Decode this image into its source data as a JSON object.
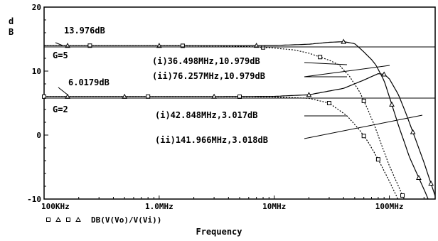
{
  "chart_data": {
    "type": "line",
    "title": "",
    "xlabel": "Frequency",
    "ylabel": "dB",
    "x_scale": "log",
    "xlim": [
      100000,
      250000000
    ],
    "ylim": [
      -10,
      20
    ],
    "x_tick_labels": [
      {
        "value": 100000,
        "label": "100KHz"
      },
      {
        "value": 1000000,
        "label": "1.0MHz"
      },
      {
        "value": 10000000,
        "label": "10MHz"
      },
      {
        "value": 100000000,
        "label": "100MHz"
      }
    ],
    "y_tick_labels": [
      {
        "value": 20,
        "label": "20"
      },
      {
        "value": 10,
        "label": "10"
      },
      {
        "value": 0,
        "label": "0"
      },
      {
        "value": -10,
        "label": "-10"
      }
    ],
    "grid": false,
    "legend": {
      "placement": "bottom-left",
      "label": "DB(V(Vo)/V(Vi))",
      "markers": [
        "square",
        "triangle",
        "square",
        "triangle"
      ]
    },
    "series": [
      {
        "style": "solid",
        "marker": "triangle",
        "x": [
          100000,
          1000000,
          5000000,
          10000000,
          20000000,
          30000000,
          40000000,
          50000000,
          60000000,
          70000000,
          76257000,
          90000000,
          100000000,
          120000000,
          150000000,
          200000000,
          250000000
        ],
        "y": [
          13.976,
          13.976,
          13.98,
          14.0,
          14.2,
          14.5,
          14.6,
          14.3,
          13.0,
          11.8,
          10.979,
          8.5,
          6.0,
          1.5,
          -3.5,
          -8.5,
          -12.5
        ]
      },
      {
        "style": "dashed",
        "marker": "square",
        "x": [
          100000,
          1000000,
          5000000,
          10000000,
          15000000,
          20000000,
          30000000,
          36498000,
          45000000,
          55000000,
          65000000,
          75000000,
          85000000,
          100000000,
          120000000,
          150000000,
          200000000
        ],
        "y": [
          13.976,
          13.976,
          13.9,
          13.6,
          13.3,
          12.8,
          11.7,
          10.979,
          9.2,
          6.8,
          4.0,
          1.3,
          -1.4,
          -4.8,
          -8.0,
          -12.0,
          -17.0
        ]
      },
      {
        "style": "solid",
        "marker": "triangle",
        "x": [
          100000,
          1000000,
          5000000,
          10000000,
          20000000,
          40000000,
          60000000,
          80000000,
          90000000,
          100000000,
          120000000,
          141966000,
          170000000,
          200000000,
          250000000
        ],
        "y": [
          6.0179,
          6.0179,
          6.03,
          6.05,
          6.3,
          7.3,
          8.6,
          9.6,
          9.5,
          8.8,
          6.3,
          3.018,
          -0.8,
          -4.3,
          -9.5
        ]
      },
      {
        "style": "dashed",
        "marker": "square",
        "x": [
          100000,
          1000000,
          5000000,
          10000000,
          20000000,
          30000000,
          42848000,
          55000000,
          65000000,
          80000000,
          100000000,
          130000000,
          170000000
        ],
        "y": [
          6.0179,
          6.0179,
          6.0,
          5.95,
          5.75,
          5.0,
          3.017,
          0.8,
          -1.0,
          -3.8,
          -7.2,
          -11.5,
          -16.0
        ]
      }
    ],
    "annotations": {
      "g5_level": "13.976dB",
      "g5_label": "G=5",
      "g2_level": "6.0179dB",
      "g2_label": "G=2",
      "g5_i": "(i)36.498MHz,10.979dB",
      "g5_ii": "(ii)76.257MHz,10.979dB",
      "g2_i": "(i)42.848MHz,3.017dB",
      "g2_ii": "(ii)141.966MHz,3.018dB"
    }
  }
}
